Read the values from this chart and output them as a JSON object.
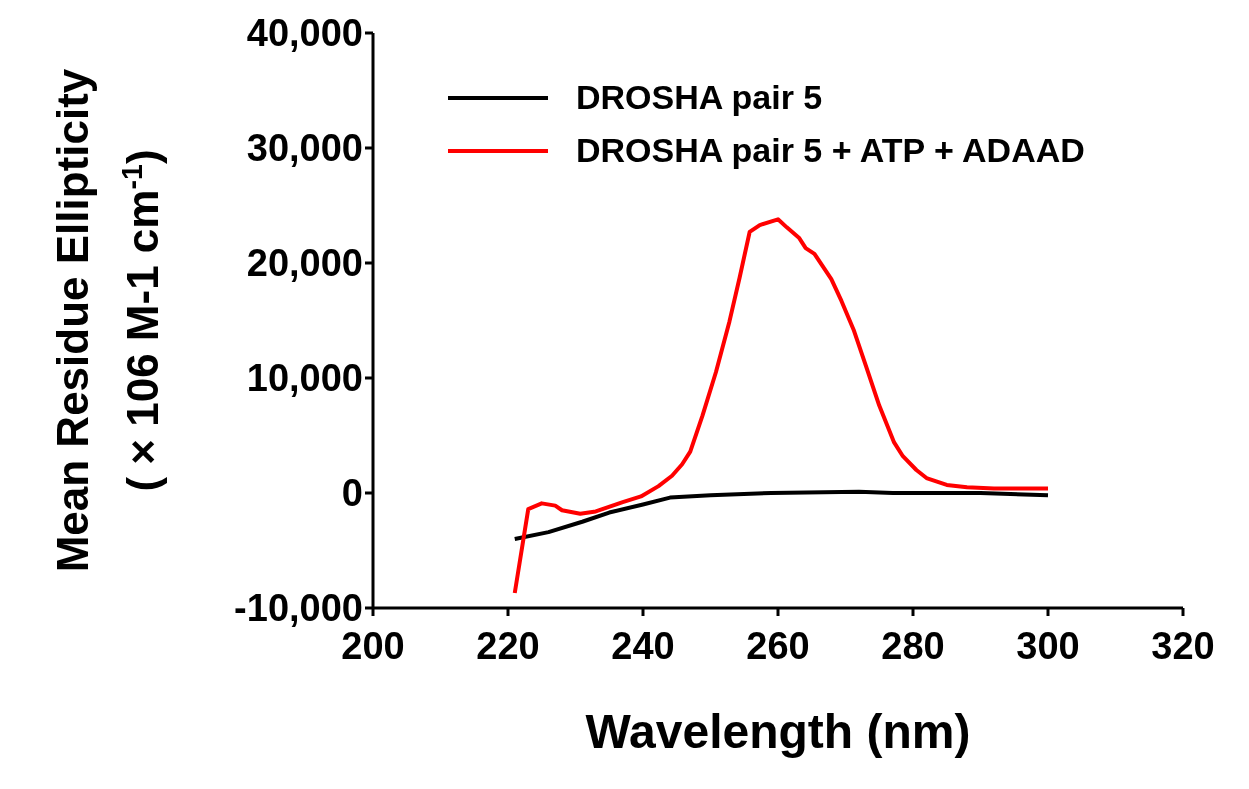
{
  "chart_data": {
    "type": "line",
    "xlabel": "Wavelength (nm)",
    "ylabel": "Mean Residue Ellipticity\n( × 106  M-1 cm$^{-1}$)",
    "xlim": [
      200,
      320
    ],
    "xticks": [
      200,
      220,
      240,
      260,
      280,
      300,
      320
    ],
    "ylim": [
      -10000,
      40000
    ],
    "yticks": [
      {
        "value": -10000,
        "label": "-10,000"
      },
      {
        "value": 0,
        "label": "0"
      },
      {
        "value": 10000,
        "label": "10,000"
      },
      {
        "value": 20000,
        "label": "20,000"
      },
      {
        "value": 30000,
        "label": "30,000"
      },
      {
        "value": 40000,
        "label": "40,000"
      }
    ],
    "grid": false,
    "legend": "top left",
    "marker": "none",
    "line_style": "solid",
    "series": [
      {
        "name": "DROSHA pair 5",
        "color": "#000000",
        "x": [
          221,
          226,
          231,
          235,
          240,
          244,
          250,
          259,
          272,
          277,
          290,
          300
        ],
        "values": [
          -4000,
          -3400,
          -2500,
          -1700,
          -1000,
          -400,
          -200,
          0,
          100,
          0,
          0,
          -200
        ]
      },
      {
        "name": "DROSHA pair 5 + ATP + ADAAD",
        "color": "#ff0000",
        "x": [
          221,
          223,
          225,
          227,
          228,
          230.7,
          233,
          237,
          239.7,
          242.3,
          244.3,
          245.8,
          247,
          248.8,
          250.8,
          252.8,
          254.3,
          255.8,
          257.3,
          260,
          261.3,
          263.1,
          264.1,
          265.4,
          267.9,
          269.4,
          271.2,
          273,
          275,
          277.2,
          278.5,
          280.5,
          282,
          285,
          288,
          292,
          300
        ],
        "values": [
          -8700,
          -1400,
          -900,
          -1100,
          -1500,
          -1800,
          -1600,
          -800,
          -300,
          600,
          1500,
          2500,
          3600,
          6700,
          10500,
          14900,
          18700,
          22700,
          23300,
          23800,
          23100,
          22200,
          21300,
          20800,
          18600,
          16700,
          14200,
          11100,
          7600,
          4400,
          3200,
          2000,
          1300,
          700,
          500,
          400,
          400
        ]
      }
    ]
  }
}
